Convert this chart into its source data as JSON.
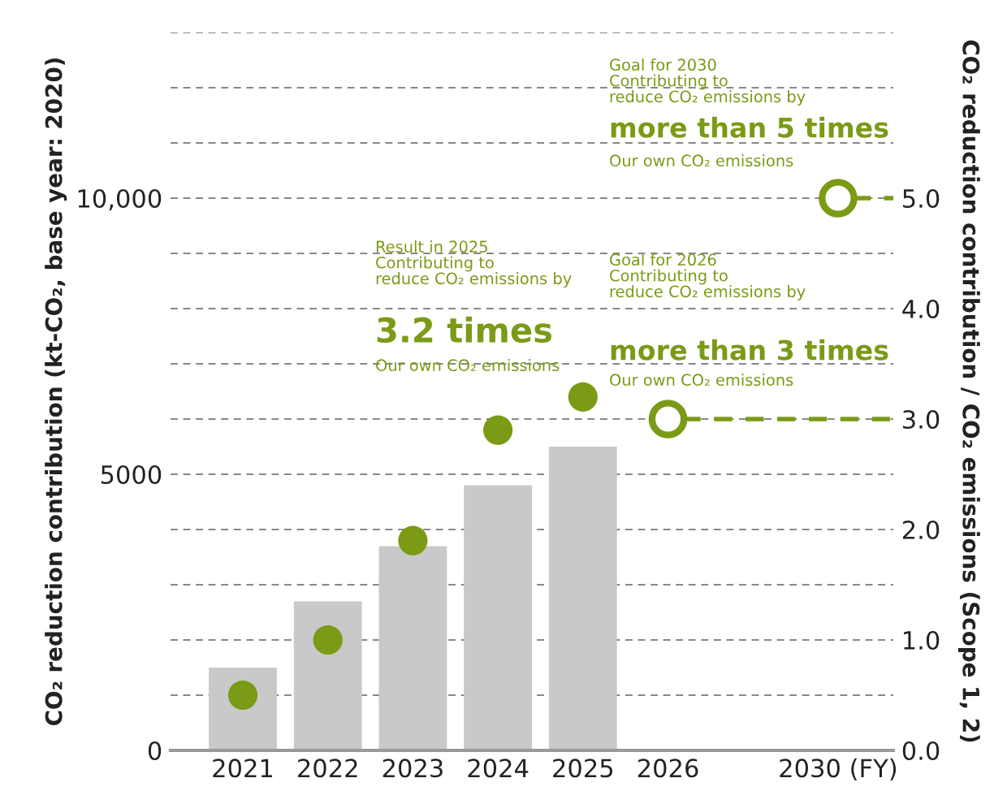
{
  "chart_data": {
    "type": "bar",
    "categories": [
      "2021",
      "2022",
      "2023",
      "2024",
      "2025",
      "2026",
      null,
      "2030 (FY)"
    ],
    "ylabel": "CO₂ reduction contribution (kt-CO₂, base year: 2020)",
    "y2label": "CO₂ reduction contribution / CO₂ emissions (Scope 1, 2)",
    "series": [
      {
        "color": "#c8c9c8",
        "values": [
          1500,
          2700,
          3700,
          4800,
          5500,
          null,
          null,
          null
        ]
      },
      {
        "type": "scatter",
        "axis": "y2",
        "color": "#7b9a16",
        "marker": "circle",
        "values": [
          0.5,
          1.0,
          1.9,
          2.9,
          3.2,
          null,
          null,
          null
        ]
      },
      {
        "type": "scatter",
        "axis": "y2",
        "color": "#7b9a16",
        "marker": "circle",
        "values": [
          null,
          null,
          null,
          null,
          null,
          3.0,
          null,
          5.0
        ]
      }
    ],
    "ylim": [
      0,
      13000
    ],
    "yticks": [
      0,
      {
        "value": 1000,
        "label": null
      },
      {
        "value": 2000,
        "label": null
      },
      {
        "value": 3000,
        "label": null
      },
      {
        "value": 4000,
        "label": null
      },
      5000,
      {
        "value": 6000,
        "label": null
      },
      {
        "value": 7000,
        "label": null
      },
      {
        "value": 8000,
        "label": null
      },
      {
        "value": 9000,
        "label": null
      },
      {
        "value": 10000,
        "label": "10,000"
      },
      {
        "value": 11000,
        "label": null
      },
      {
        "value": 12000,
        "label": null
      },
      {
        "value": 13000,
        "label": null
      }
    ],
    "y2lim": [
      0,
      6.5
    ],
    "y2ticks": [
      {
        "value": 0,
        "label": "0.0"
      },
      {
        "value": 1,
        "label": "1.0"
      },
      {
        "value": 2,
        "label": "2.0"
      },
      {
        "value": 3,
        "label": "3.0"
      },
      {
        "value": 4,
        "label": "4.0"
      },
      {
        "value": 5,
        "label": "5.0"
      }
    ],
    "grid": "y",
    "ref_lines": [
      {
        "axis": "y2",
        "value": 3.0,
        "color": "#7b9a16",
        "line_style": "dashed"
      },
      {
        "axis": "y2",
        "value": 5.0,
        "color": "#7b9a16",
        "line_style": "dashed"
      }
    ],
    "annotations": [
      "Goal for 2030\nContributing to\nreduce CO₂ emissions by",
      "more than 5 times",
      "Our own CO₂ emissions",
      "Goal for 2026\nContributing to\nreduce CO₂ emissions by",
      "more than 3 times",
      "Our own CO₂ emissions",
      "Result in 2025\nContributing to\nreduce CO₂ emissions by",
      "3.2 times",
      "Our own CO₂ emissions"
    ]
  }
}
